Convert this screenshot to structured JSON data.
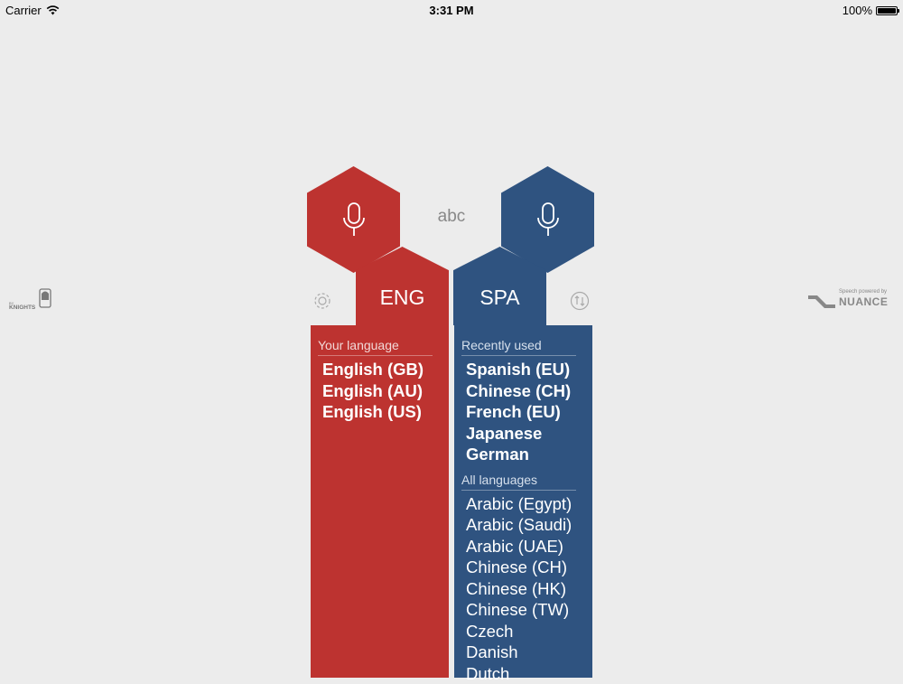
{
  "status_bar": {
    "carrier": "Carrier",
    "time": "3:31 PM",
    "battery": "100%",
    "battery_level": 1.0
  },
  "icons": {
    "wifi": "wifi-icon",
    "mic": "microphone-icon",
    "settings": "gear-icon",
    "swap": "swap-icon"
  },
  "center_label": "abc",
  "colors": {
    "red": "#bd3330",
    "blue": "#2f5380",
    "background": "#ececec"
  },
  "source": {
    "code": "ENG",
    "header": "Your language",
    "languages": [
      "English (GB)",
      "English (AU)",
      "English (US)"
    ]
  },
  "target": {
    "code": "SPA",
    "recent_header": "Recently used",
    "recent": [
      "Spanish (EU)",
      "Chinese (CH)",
      "French (EU)",
      "Japanese",
      "German"
    ],
    "all_header": "All languages",
    "all": [
      "Arabic (Egypt)",
      "Arabic (Saudi)",
      "Arabic (UAE)",
      "Chinese (CH)",
      "Chinese (HK)",
      "Chinese (TW)",
      "Czech",
      "Danish",
      "Dutch"
    ]
  },
  "logos": {
    "left_text": "KNIGHTS",
    "right_small": "Speech powered by",
    "right_brand": "NUANCE"
  }
}
